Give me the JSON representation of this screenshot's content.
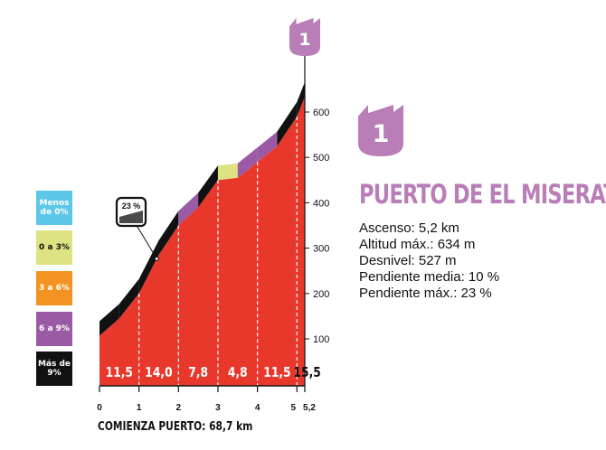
{
  "colors": {
    "profile_fill": "#e8382c",
    "gradient_black": "#111111",
    "gradient_purple": "#9a5aa6",
    "gradient_yellow": "#dde282",
    "gradient_orange": "#f39324",
    "gradient_cyan": "#5cc7e8",
    "category_badge": "#b97eb8"
  },
  "legend": [
    {
      "label": "Menos de 0%",
      "color": "#5cc7e8",
      "text_color": "#ffffff"
    },
    {
      "label": "0 a 3%",
      "color": "#dde282",
      "text_color": "#111111"
    },
    {
      "label": "3 a 6%",
      "color": "#f39324",
      "text_color": "#ffffff"
    },
    {
      "label": "6 a 9%",
      "color": "#9a5aa6",
      "text_color": "#ffffff"
    },
    {
      "label": "Más de 9%",
      "color": "#111111",
      "text_color": "#ffffff"
    }
  ],
  "climb": {
    "category": "1",
    "name": "PUERTO DE EL MISERAT",
    "stats": [
      "Ascenso: 5,2 km",
      "Altitud máx.: 634 m",
      "Desnivel: 527 m",
      "Pendiente media: 10 %",
      "Pendiente máx.: 23 %"
    ],
    "max_gradient_badge": "23 %",
    "start_label": "COMIENZA PUERTO: 68,7 km"
  },
  "chart_data": {
    "type": "area",
    "xlabel": "",
    "ylabel": "",
    "x_ticks": [
      "0",
      "1",
      "2",
      "3",
      "4",
      "5",
      "5,2"
    ],
    "x_tick_values": [
      0,
      1,
      2,
      3,
      4,
      5,
      5.2
    ],
    "y_ticks": [
      100,
      200,
      300,
      400,
      500,
      600
    ],
    "xlim": [
      0,
      5.2
    ],
    "ylim": [
      60,
      660
    ],
    "profile": [
      {
        "x": 0,
        "y": 107
      },
      {
        "x": 0.5,
        "y": 145
      },
      {
        "x": 1,
        "y": 200
      },
      {
        "x": 1.5,
        "y": 285
      },
      {
        "x": 2,
        "y": 350
      },
      {
        "x": 2.5,
        "y": 390
      },
      {
        "x": 3,
        "y": 450
      },
      {
        "x": 3.5,
        "y": 455
      },
      {
        "x": 4,
        "y": 490
      },
      {
        "x": 4.5,
        "y": 525
      },
      {
        "x": 5,
        "y": 590
      },
      {
        "x": 5.2,
        "y": 634
      }
    ],
    "segments": [
      {
        "x0": 0,
        "x1": 0.5,
        "color": "#111111"
      },
      {
        "x0": 0.5,
        "x1": 1,
        "color": "#111111"
      },
      {
        "x0": 1,
        "x1": 1.5,
        "color": "#111111"
      },
      {
        "x0": 1.5,
        "x1": 2,
        "color": "#111111"
      },
      {
        "x0": 2,
        "x1": 2.5,
        "color": "#9a5aa6"
      },
      {
        "x0": 2.5,
        "x1": 3,
        "color": "#111111"
      },
      {
        "x0": 3,
        "x1": 3.5,
        "color": "#dde282"
      },
      {
        "x0": 3.5,
        "x1": 4,
        "color": "#9a5aa6"
      },
      {
        "x0": 4,
        "x1": 4.5,
        "color": "#9a5aa6"
      },
      {
        "x0": 4.5,
        "x1": 5,
        "color": "#111111"
      },
      {
        "x0": 5,
        "x1": 5.2,
        "color": "#111111"
      }
    ],
    "km_gradients": [
      {
        "x_mid": 0.5,
        "label": "11,5"
      },
      {
        "x_mid": 1.5,
        "label": "14,0"
      },
      {
        "x_mid": 2.5,
        "label": "7,8"
      },
      {
        "x_mid": 3.5,
        "label": "4,8"
      },
      {
        "x_mid": 4.5,
        "label": "11,5"
      },
      {
        "x_mid": 5.1,
        "label": "15,5"
      }
    ],
    "max_gradient_at_km": 1.45
  }
}
